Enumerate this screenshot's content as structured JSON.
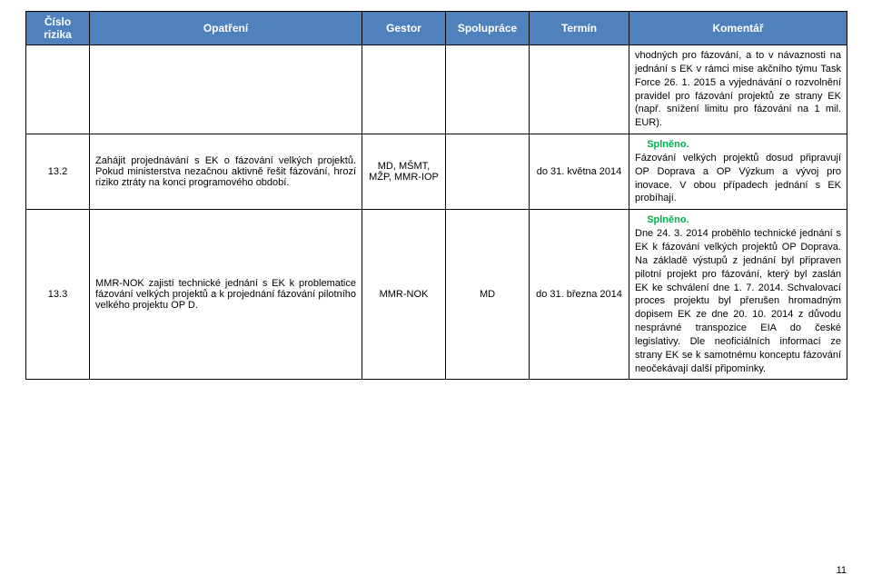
{
  "header": {
    "cislo": "Číslo rizika",
    "opatreni": "Opatření",
    "gestor": "Gestor",
    "spoluprace": "Spolupráce",
    "termin": "Termín",
    "komentar": "Komentář"
  },
  "top": {
    "komentar_a": "vhodných pro fázování, a to v návaznosti na jednání s EK v rámci mise akčního týmu Task Force 26. 1. 2015 a vyjednávání o rozvolnění pravidel pro fázování projektů ze strany EK (např. snížení limitu pro fázování na 1 mil. EUR)."
  },
  "r1": {
    "cislo": "13.2",
    "opatreni": "Zahájit projednávání s EK o fázování velkých projektů. Pokud ministerstva nezačnou aktivně řešit fázování, hrozí riziko ztráty na konci programového období.",
    "gestor": "MD, MŠMT, MŽP, MMR-IOP",
    "spoluprace": "",
    "termin": "do 31. května 2014",
    "splneno": "Splněno.",
    "komentar": "Fázování velkých projektů dosud připravují OP Doprava a OP Výzkum a vývoj pro inovace. V obou případech jednání s EK probíhají."
  },
  "r2": {
    "cislo": "13.3",
    "opatreni": "MMR-NOK zajistí technické jednání s EK k problematice fázování velkých projektů a k projednání fázování pilotního velkého projektu OP D.",
    "gestor": "MMR-NOK",
    "spoluprace": "MD",
    "termin": "do 31. března 2014",
    "splneno": "Splněno.",
    "komentar": "Dne 24. 3. 2014 proběhlo technické jednání s EK k fázování velkých projektů OP Doprava. Na základě výstupů z jednání byl připraven pilotní projekt pro fázování, který byl zaslán EK ke schválení dne 1. 7. 2014. Schvalovací proces projektu byl přerušen hromadným dopisem EK ze dne 20. 10. 2014 z důvodu nesprávné transpozice EIA do české legislativy. Dle neoficiálních informací ze strany EK se k samotnému konceptu fázování neočekávají další připomínky."
  },
  "page": "11",
  "colors": {
    "header_bg": "#4f81bd",
    "header_fg": "#ffffff",
    "border": "#000000",
    "splneno": "#00b050",
    "body_bg": "#ffffff",
    "text": "#000000"
  }
}
